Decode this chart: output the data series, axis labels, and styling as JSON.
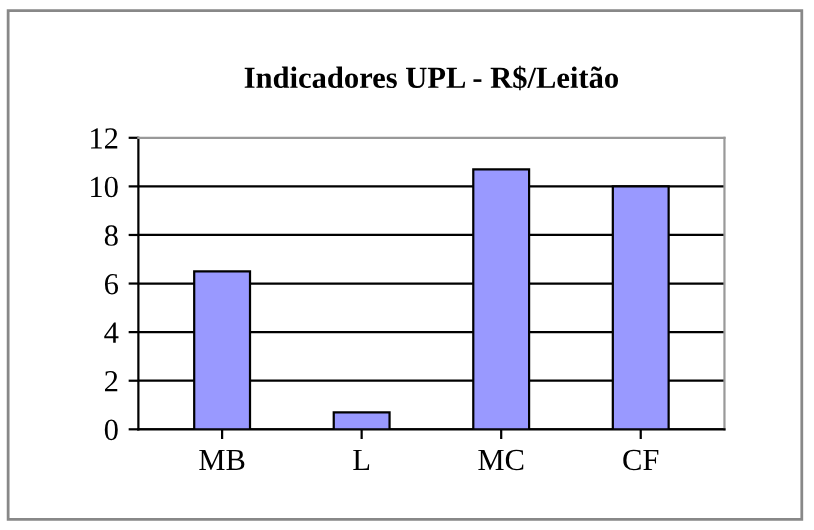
{
  "chart_data": {
    "type": "bar",
    "title": "Indicadores UPL - R$/Leitão",
    "categories": [
      "MB",
      "L",
      "MC",
      "CF"
    ],
    "values": [
      6.5,
      0.7,
      10.7,
      10.0
    ],
    "color": "#9999ff",
    "ylim": [
      0,
      12
    ],
    "yticks": [
      0,
      2,
      4,
      6,
      8,
      10,
      12
    ],
    "grid": "y"
  }
}
